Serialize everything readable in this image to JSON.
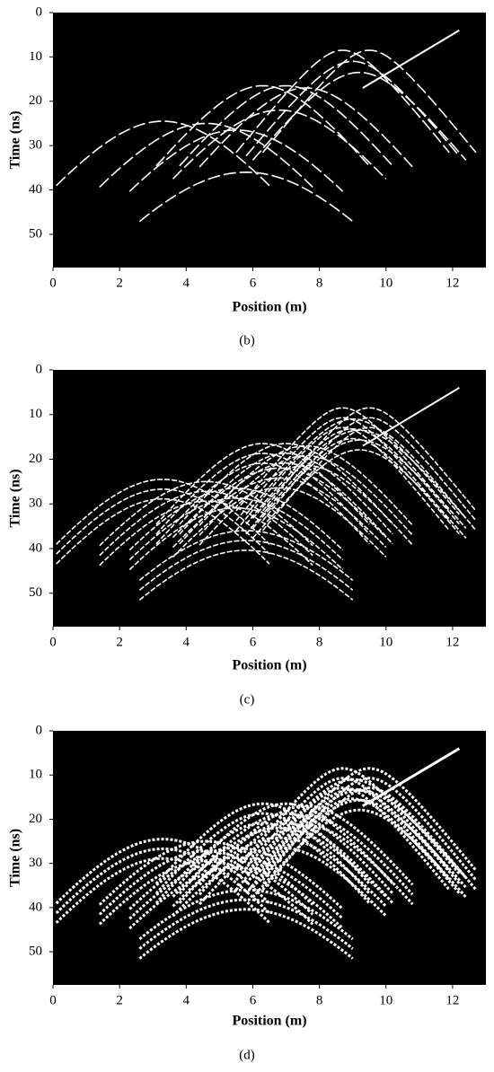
{
  "chart_data": [
    {
      "type": "image",
      "caption": "(b)",
      "xlabel": "Position (m)",
      "ylabel": "Time (ns)",
      "xlim": [
        0,
        13
      ],
      "ylim": [
        0,
        57.5
      ],
      "y_inverted": true,
      "xticks": [
        0,
        2,
        4,
        6,
        8,
        10,
        12
      ],
      "yticks": [
        0,
        10,
        20,
        30,
        40,
        50
      ]
    },
    {
      "type": "image",
      "caption": "(c)",
      "xlabel": "Position (m)",
      "ylabel": "Time (ns)",
      "xlim": [
        0,
        13
      ],
      "ylim": [
        0,
        57.5
      ],
      "y_inverted": true,
      "xticks": [
        0,
        2,
        4,
        6,
        8,
        10,
        12
      ],
      "yticks": [
        0,
        10,
        20,
        30,
        40,
        50
      ]
    },
    {
      "type": "image",
      "caption": "(d)",
      "xlabel": "Position (m)",
      "ylabel": "Time (ns)",
      "xlim": [
        0,
        13
      ],
      "ylim": [
        0,
        57.5
      ],
      "y_inverted": true,
      "xticks": [
        0,
        2,
        4,
        6,
        8,
        10,
        12
      ],
      "yticks": [
        0,
        10,
        20,
        30,
        40,
        50
      ]
    }
  ]
}
